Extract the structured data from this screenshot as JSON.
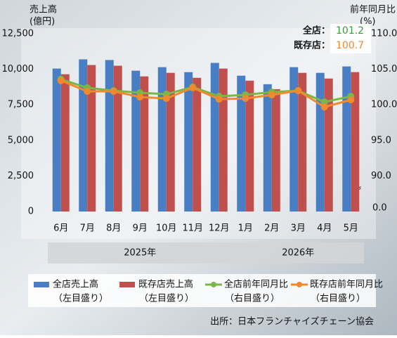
{
  "chart_data": {
    "type": "combo",
    "y_title": [
      "売上高",
      "(億円)"
    ],
    "y2_title": [
      "前年同月比",
      "(%)"
    ],
    "categories": [
      "6月",
      "7月",
      "8月",
      "9月",
      "10月",
      "11月",
      "12月",
      "1月",
      "2月",
      "3月",
      "4月",
      "5月"
    ],
    "year_labels": [
      "2025年",
      "2025年",
      "2025年",
      "2025年",
      "2025年",
      "2025年",
      "2025年",
      "2026年",
      "2026年",
      "2026年",
      "2026年",
      "2026年"
    ],
    "series": [
      {
        "name": "全店売上高",
        "axis_note": "（左目盛り）",
        "type": "bar",
        "color": "#4a7ec4",
        "values": [
          10050,
          10700,
          10650,
          9900,
          10150,
          9800,
          10450,
          9550,
          8950,
          10150,
          9750,
          10200
        ]
      },
      {
        "name": "既存店売上高",
        "axis_note": "（左目盛り）",
        "type": "bar",
        "color": "#c0504d",
        "values": [
          9650,
          10300,
          10250,
          9500,
          9750,
          9400,
          10050,
          9200,
          8600,
          9750,
          9350,
          9800
        ]
      },
      {
        "name": "全店前年同月比",
        "axis_note": "（右目盛り）",
        "type": "line",
        "axis": "y2",
        "color": "#7ab648",
        "values": [
          103.6,
          102.4,
          102.0,
          101.7,
          101.5,
          102.5,
          101.2,
          101.4,
          101.8,
          102.0,
          100.4,
          101.2
        ]
      },
      {
        "name": "既存店前年同月比",
        "axis_note": "（右目盛り）",
        "type": "line",
        "axis": "y2",
        "color": "#f08a2c",
        "values": [
          103.4,
          101.9,
          101.9,
          101.1,
          100.9,
          102.4,
          100.8,
          100.9,
          101.4,
          102.0,
          99.7,
          100.7
        ]
      }
    ],
    "ylim": [
      0,
      12500
    ],
    "yticks": [
      0,
      {
        "value": 2500,
        "label": "2,500"
      },
      {
        "value": 5000,
        "label": "5,000"
      },
      {
        "value": 7500,
        "label": "7,500"
      },
      {
        "value": 10000,
        "label": "10,000"
      },
      {
        "value": 12500,
        "label": "12,500"
      }
    ],
    "y2lim": [
      85,
      110
    ],
    "y2ticks": [
      {
        "value": 90,
        "label": "90.0"
      },
      {
        "value": 95,
        "label": "95.0"
      },
      {
        "value": 100,
        "label": "100.0"
      },
      {
        "value": 105,
        "label": "105.0"
      },
      {
        "value": 110,
        "label": "110.0"
      }
    ],
    "y2_break_symbol": "≈",
    "y2_break_label": "0.0",
    "latest": [
      {
        "label": "全店：",
        "value": 101.2,
        "color": "#3a9a3a"
      },
      {
        "label": "既存店：",
        "value": 100.7,
        "color": "#f08a2c"
      }
    ],
    "source": "出所：日本フランチャイズチェーン協会",
    "grid": false
  }
}
